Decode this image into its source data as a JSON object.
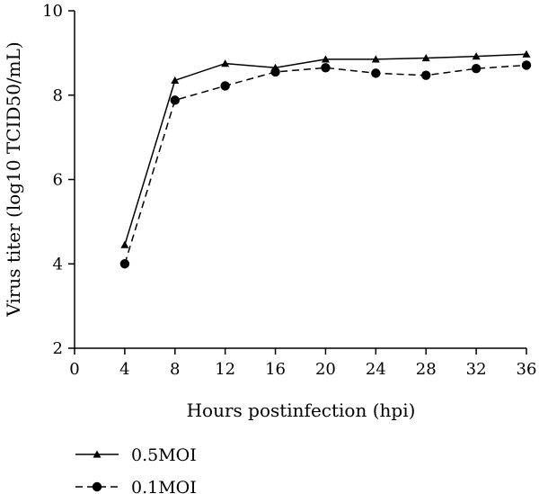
{
  "chart_data": {
    "type": "line",
    "xlabel": "Hours postinfection (hpi)",
    "ylabel": "Virus titer (log10 TCID50/mL)",
    "xlim": [
      0,
      36
    ],
    "ylim": [
      2,
      10
    ],
    "x_ticks": [
      0,
      4,
      8,
      12,
      16,
      20,
      24,
      28,
      32,
      36
    ],
    "y_ticks": [
      2,
      4,
      6,
      8,
      10
    ],
    "grid": false,
    "legend_position": "bottom-left",
    "series": [
      {
        "name": "0.5MOI",
        "marker": "triangle",
        "line_style": "solid",
        "x": [
          4,
          8,
          12,
          16,
          20,
          24,
          28,
          32,
          36
        ],
        "y": [
          4.45,
          8.35,
          8.75,
          8.65,
          8.85,
          8.85,
          8.88,
          8.92,
          8.97
        ]
      },
      {
        "name": "0.1MOI",
        "marker": "circle",
        "line_style": "dashed",
        "x": [
          4,
          8,
          12,
          16,
          20,
          24,
          28,
          32,
          36
        ],
        "y": [
          4.0,
          7.88,
          8.22,
          8.55,
          8.65,
          8.52,
          8.47,
          8.63,
          8.71
        ]
      }
    ]
  }
}
